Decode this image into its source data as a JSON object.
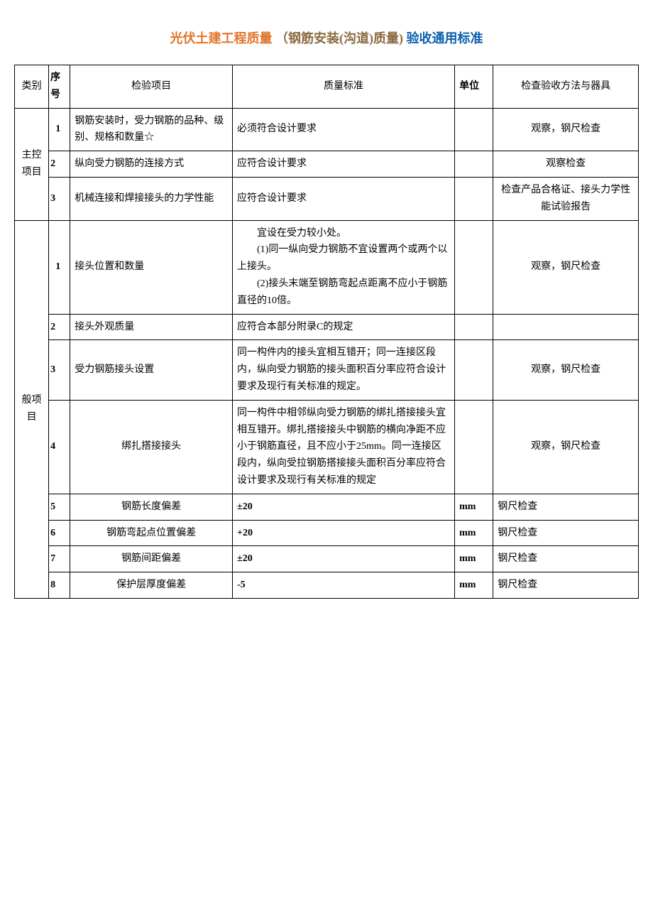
{
  "title": {
    "p1": "光伏土建工程质量",
    "p2": "（钢筋安装(沟道)质量)",
    "p3": "",
    "p4": "验收通用标准"
  },
  "colors": {
    "title_p1": "#e17428",
    "title_p2": "#8b6a3f",
    "title_p4": "#0a5fb0",
    "text": "#000000",
    "border": "#000000",
    "background": "#ffffff"
  },
  "font": {
    "title_size": 18,
    "body_size": 14,
    "title_weight": "bold"
  },
  "columns": {
    "category": "类别",
    "seq": "序号",
    "item": "检验项目",
    "standard": "质量标准",
    "unit": "单位",
    "method": "检查验收方法与器具"
  },
  "categories": {
    "main": "主控项目",
    "general": "般项目"
  },
  "rows_main": [
    {
      "seq": "1",
      "item": "钢筋安装时，受力钢筋的品种、级别、规格和数量☆",
      "standard": "必须符合设计要求",
      "unit": "",
      "method": "观察，钢尺检查"
    },
    {
      "seq": "2",
      "item": "纵向受力钢筋的连接方式",
      "standard": "应符合设计要求",
      "unit": "",
      "method": "观察检查"
    },
    {
      "seq": "3",
      "item": "机械连接和焊接接头的力学性能",
      "standard": "应符合设计要求",
      "unit": "",
      "method": "检查产品合格证、接头力学性能试验报告"
    }
  ],
  "rows_general": [
    {
      "seq": "1",
      "item": "接头位置和数量",
      "standard_lines": [
        "宜设在受力较小处。",
        "(1)同一纵向受力钢筋不宜设置两个或两个以上接头。",
        "(2)接头末端至钢筋弯起点距离不应小于钢筋直径的10倍。"
      ],
      "standard_line1": "宜设在受力较小处。",
      "standard_line2": "(1)同一纵向受力钢筋不宜设置两个或两个以上接头。",
      "standard_line3": "(2)接头末端至钢筋弯起点距离不应小于钢筋直径的10倍。",
      "unit": "",
      "method": "观察，钢尺检查"
    },
    {
      "seq": "2",
      "item": "接头外观质量",
      "standard": "应符合本部分附录C的规定",
      "unit": "",
      "method": ""
    },
    {
      "seq": "3",
      "item": "受力钢筋接头设置",
      "standard": "同一构件内的接头宜相互错开；同一连接区段内，纵向受力钢筋的接头面积百分率应符合设计要求及现行有关标准的规定。",
      "unit": "",
      "method": "观察，钢尺检查"
    },
    {
      "seq": "4",
      "item": "绑扎搭接接头",
      "standard": "同一构件中相邻纵向受力钢筋的绑扎搭接接头宜相互错开。绑扎搭接接头中钢筋的横向净距不应小于钢筋直径，且不应小于25mm。同一连接区段内，纵向受拉钢筋搭接接头面积百分率应符合设计要求及现行有关标准的规定",
      "unit": "",
      "method": "观察，钢尺检查"
    },
    {
      "seq": "5",
      "item": "钢筋长度偏差",
      "standard": "±20",
      "unit": "mm",
      "method": "钢尺检查"
    },
    {
      "seq": "6",
      "item": "钢筋弯起点位置偏差",
      "standard": "+20",
      "unit": "mm",
      "method": "钢尺检查"
    },
    {
      "seq": "7",
      "item": "钢筋间距偏差",
      "standard": "±20",
      "unit": "mm",
      "method": "钢尺检查"
    },
    {
      "seq": "8",
      "item": "保护层厚度偏差",
      "standard": " -5",
      "unit": "mm",
      "method": "钢尺检查"
    }
  ],
  "column_widths": {
    "category": 40,
    "seq": 25,
    "item": 190,
    "standard": 260,
    "unit": 45,
    "method": 170
  }
}
